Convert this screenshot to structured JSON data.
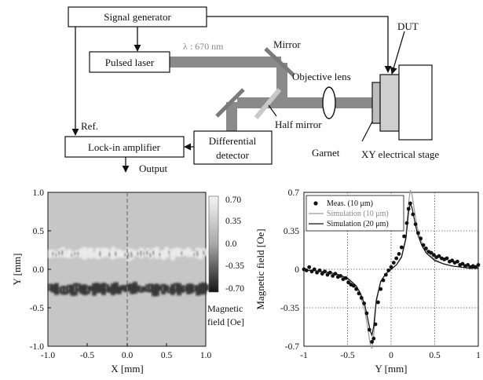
{
  "setup": {
    "signal_generator": "Signal generator",
    "pulsed_laser": "Pulsed laser",
    "lockin": "Lock-in amplifier",
    "diff_detector_line1": "Differential",
    "diff_detector_line2": "detector",
    "wavelength": "λ : 670 nm",
    "mirror": "Mirror",
    "objective_lens": "Objective lens",
    "half_mirror": "Half mirror",
    "dut": "DUT",
    "garnet": "Garnet",
    "stage": "XY electrical stage",
    "ref": "Ref.",
    "output": "Output"
  },
  "map": {
    "xlabel": "X [mm]",
    "ylabel": "Y [mm]",
    "xticks": [
      "-1.0",
      "-0.5",
      "0.0",
      "0.5",
      "1.0"
    ],
    "yticks": [
      "1.0",
      "0.5",
      "0.0",
      "-0.5",
      "-1.0"
    ],
    "colorbar_ticks": [
      "0.70",
      "0.35",
      "0.0",
      "-0.35",
      "-0.70"
    ],
    "colorbar_label_line1": "Magnetic",
    "colorbar_label_line2": "field [Oe]",
    "colors": {
      "background": "#c6c6c6",
      "positive": "#f2f2f2",
      "negative": "#2a2a2a"
    }
  },
  "chart_data": {
    "type": "scatter",
    "xlabel": "Y [mm]",
    "ylabel": "Magnetic field [Oe]",
    "xlim": [
      -1,
      1
    ],
    "ylim": [
      -0.7,
      0.7
    ],
    "xticks": [
      "-1",
      "-0.5",
      "0",
      "0.5",
      "1"
    ],
    "yticks": [
      "0.7",
      "0.35",
      "0",
      "-0.35",
      "-0.7"
    ],
    "grid": "dotted",
    "legend_placement": "top-left",
    "series": [
      {
        "name": "Meas. (10 μm)",
        "kind": "points",
        "x": [
          -1.0,
          -0.97,
          -0.94,
          -0.91,
          -0.88,
          -0.85,
          -0.82,
          -0.79,
          -0.76,
          -0.73,
          -0.7,
          -0.67,
          -0.64,
          -0.61,
          -0.58,
          -0.55,
          -0.52,
          -0.49,
          -0.46,
          -0.43,
          -0.4,
          -0.37,
          -0.34,
          -0.31,
          -0.28,
          -0.25,
          -0.22,
          -0.2,
          -0.18,
          -0.15,
          -0.12,
          -0.09,
          -0.06,
          -0.03,
          0.0,
          0.03,
          0.06,
          0.09,
          0.12,
          0.15,
          0.18,
          0.2,
          0.22,
          0.25,
          0.28,
          0.31,
          0.34,
          0.37,
          0.4,
          0.43,
          0.46,
          0.49,
          0.52,
          0.55,
          0.58,
          0.61,
          0.64,
          0.67,
          0.7,
          0.73,
          0.76,
          0.79,
          0.82,
          0.85,
          0.88,
          0.91,
          0.94,
          0.97,
          1.0
        ],
        "y": [
          0.0,
          -0.01,
          0.02,
          -0.02,
          0.0,
          -0.03,
          -0.01,
          -0.04,
          -0.02,
          -0.05,
          -0.03,
          -0.06,
          -0.04,
          -0.07,
          -0.06,
          -0.09,
          -0.08,
          -0.12,
          -0.14,
          -0.15,
          -0.18,
          -0.22,
          -0.26,
          -0.31,
          -0.4,
          -0.55,
          -0.66,
          -0.63,
          -0.5,
          -0.3,
          -0.18,
          -0.1,
          -0.05,
          -0.01,
          0.02,
          0.06,
          0.1,
          0.14,
          0.2,
          0.3,
          0.42,
          0.55,
          0.6,
          0.5,
          0.41,
          0.33,
          0.28,
          0.22,
          0.19,
          0.16,
          0.15,
          0.13,
          0.11,
          0.12,
          0.1,
          0.09,
          0.1,
          0.07,
          0.08,
          0.06,
          0.07,
          0.04,
          0.05,
          0.03,
          0.04,
          0.02,
          0.03,
          0.02,
          0.04
        ]
      },
      {
        "name": "Simulation (10 μm)",
        "kind": "line",
        "color": "#9a9a9a",
        "x": [
          -1.0,
          -0.9,
          -0.8,
          -0.7,
          -0.6,
          -0.5,
          -0.4,
          -0.35,
          -0.3,
          -0.27,
          -0.24,
          -0.22,
          -0.2,
          -0.17,
          -0.12,
          -0.06,
          0.0,
          0.06,
          0.12,
          0.17,
          0.2,
          0.22,
          0.24,
          0.27,
          0.3,
          0.35,
          0.4,
          0.5,
          0.6,
          0.7,
          0.8,
          0.9,
          1.0
        ],
        "y": [
          -0.01,
          -0.01,
          -0.02,
          -0.03,
          -0.05,
          -0.09,
          -0.17,
          -0.25,
          -0.38,
          -0.52,
          -0.68,
          -0.72,
          -0.6,
          -0.3,
          -0.12,
          -0.04,
          0.0,
          0.04,
          0.12,
          0.3,
          0.6,
          0.72,
          0.68,
          0.52,
          0.38,
          0.25,
          0.17,
          0.09,
          0.05,
          0.03,
          0.02,
          0.01,
          0.01
        ]
      },
      {
        "name": "Simulation (20 μm)",
        "kind": "line",
        "color": "#111111",
        "x": [
          -1.0,
          -0.9,
          -0.8,
          -0.7,
          -0.6,
          -0.5,
          -0.4,
          -0.35,
          -0.3,
          -0.27,
          -0.24,
          -0.22,
          -0.2,
          -0.17,
          -0.12,
          -0.06,
          0.0,
          0.06,
          0.12,
          0.17,
          0.2,
          0.22,
          0.24,
          0.27,
          0.3,
          0.35,
          0.4,
          0.5,
          0.6,
          0.7,
          0.8,
          0.9,
          1.0
        ],
        "y": [
          -0.01,
          -0.01,
          -0.02,
          -0.03,
          -0.05,
          -0.08,
          -0.15,
          -0.22,
          -0.33,
          -0.44,
          -0.56,
          -0.6,
          -0.52,
          -0.28,
          -0.11,
          -0.04,
          0.0,
          0.04,
          0.11,
          0.28,
          0.52,
          0.6,
          0.56,
          0.44,
          0.33,
          0.22,
          0.15,
          0.08,
          0.05,
          0.03,
          0.02,
          0.01,
          0.01
        ]
      }
    ]
  }
}
